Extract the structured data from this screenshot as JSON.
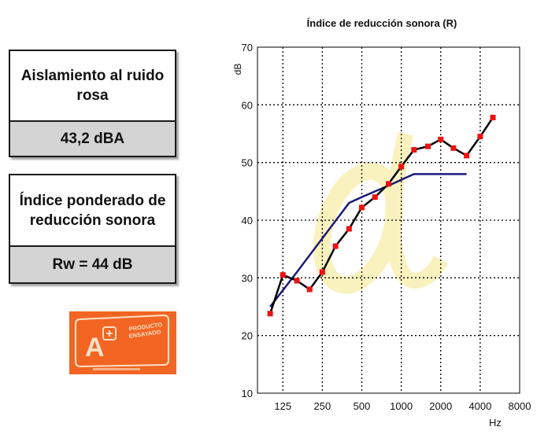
{
  "panels": [
    {
      "title": "Aislamiento al ruido rosa",
      "value": "43,2 dBA"
    },
    {
      "title": "Índice ponderado de reducción sonora",
      "value": "Rw = 44 dB"
    }
  ],
  "badge": {
    "symbol": "A",
    "line1": "PRODUCTO",
    "line2": "ENSAYADO",
    "colors": {
      "orange": "#f26522",
      "cream": "#fce0c8"
    }
  },
  "chart_data": {
    "type": "line",
    "title": "Índice de reducción sonora (R)",
    "xlabel": "Hz",
    "ylabel": "dB",
    "x_scale": "log",
    "xlim": [
      80,
      8000
    ],
    "ylim": [
      10,
      70
    ],
    "x_ticks": [
      125,
      250,
      500,
      1000,
      2000,
      4000,
      8000
    ],
    "y_ticks": [
      10,
      20,
      30,
      40,
      50,
      60,
      70
    ],
    "grid": true,
    "series": [
      {
        "color": "#000000",
        "marker_color": "#ee1111",
        "x": [
          100,
          125,
          160,
          200,
          250,
          315,
          400,
          500,
          630,
          800,
          1000,
          1250,
          1600,
          2000,
          2500,
          3150,
          4000,
          5000
        ],
        "y": [
          23.8,
          30.5,
          29.5,
          28.0,
          31.0,
          35.5,
          38.5,
          42.2,
          44.0,
          46.3,
          49.3,
          52.2,
          52.8,
          54.0,
          52.5,
          51.2,
          54.5,
          57.8
        ]
      },
      {
        "color": "#1a1a7a",
        "x": [
          100,
          160,
          400,
          500,
          630,
          800,
          1000,
          1250,
          3150
        ],
        "y": [
          25,
          31,
          43,
          44,
          45,
          46,
          47,
          48,
          48
        ]
      }
    ],
    "colors": {
      "watermark": "#f5e88a",
      "grid": "#000000"
    }
  }
}
